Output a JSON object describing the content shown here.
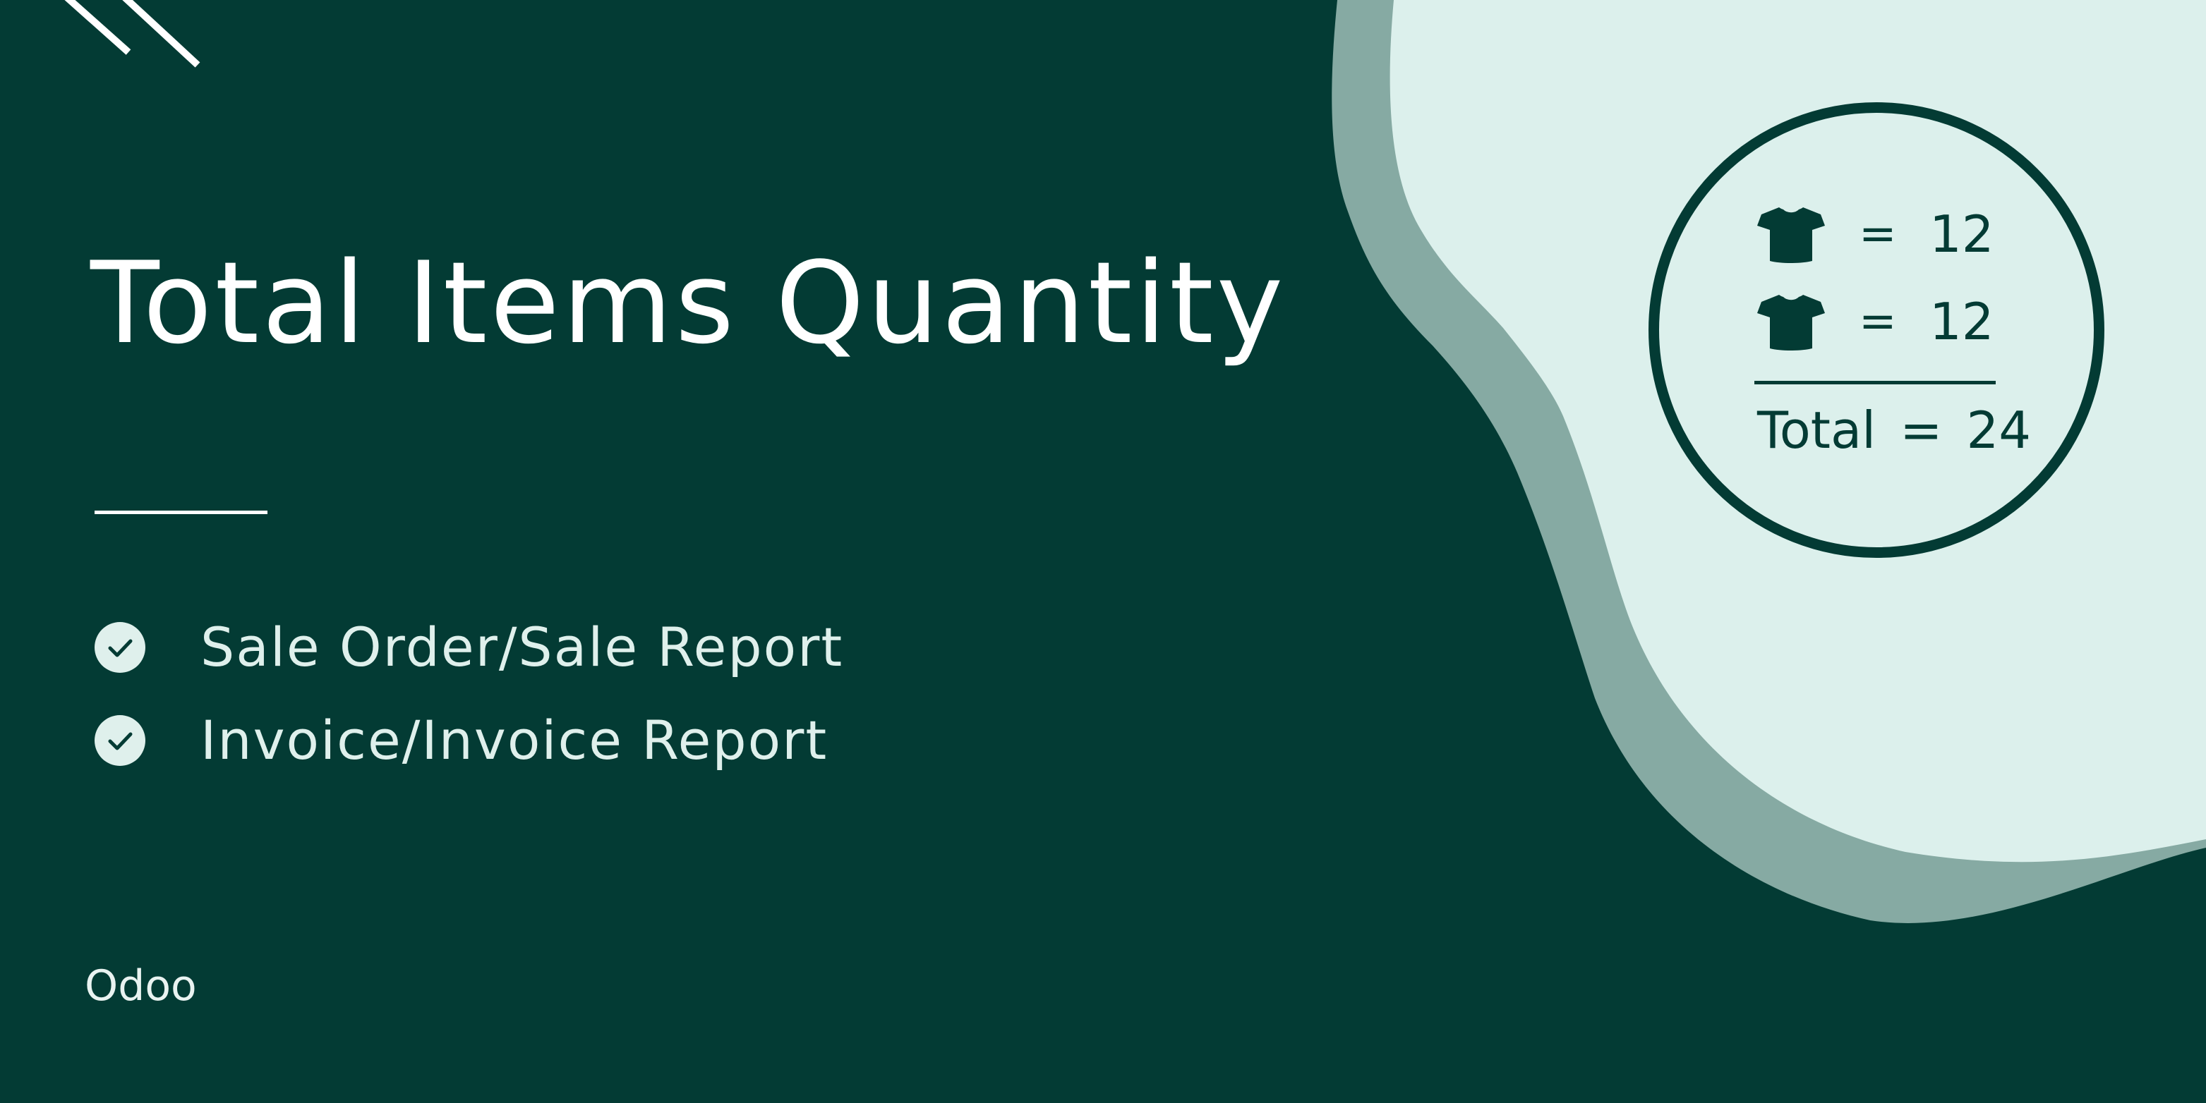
{
  "slide": {
    "title": "Total Items Quantity",
    "features": [
      {
        "label": "Sale Order/Sale Report",
        "icon": "check-circle-icon"
      },
      {
        "label": "Invoice/Invoice Report",
        "icon": "check-circle-icon"
      }
    ],
    "brand": "Odoo"
  },
  "illustration": {
    "rows": [
      {
        "icon": "t-shirt-icon",
        "equals": "=",
        "value": "12"
      },
      {
        "icon": "t-shirt-icon",
        "equals": "=",
        "value": "12"
      }
    ],
    "total": {
      "label": "Total",
      "equals": "=",
      "value": "24"
    }
  },
  "colors": {
    "background": "#033b34",
    "accent_light": "#dcf0ec",
    "accent_mid": "#86aaa3",
    "text_light": "#ffffff"
  }
}
